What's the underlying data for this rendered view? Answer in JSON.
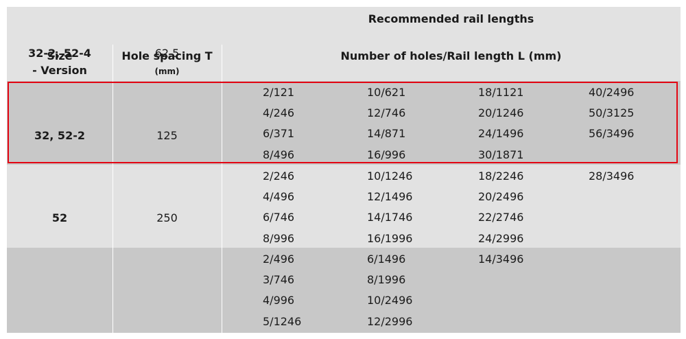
{
  "header": {
    "recommended": "Recommended rail lengths",
    "size_line1": "Size",
    "size_line2": "- Version",
    "hole_spacing": "Hole spacing T",
    "hole_unit": "(mm)",
    "holes_length": "Number of holes/Rail length L (mm)"
  },
  "rows": [
    {
      "size": "32-2, 52-4",
      "spacing": "62.5",
      "columns": [
        [
          "2/121",
          "4/246",
          "6/371",
          "8/496"
        ],
        [
          "10/621",
          "12/746",
          "14/871",
          "16/996"
        ],
        [
          "18/1121",
          "20/1246",
          "24/1496",
          "30/1871"
        ],
        [
          "40/2496",
          "50/3125",
          "56/3496"
        ]
      ]
    },
    {
      "size": "32, 52-2",
      "spacing": "125",
      "columns": [
        [
          "2/246",
          "4/496",
          "6/746",
          "8/996"
        ],
        [
          "10/1246",
          "12/1496",
          "14/1746",
          "16/1996"
        ],
        [
          "18/2246",
          "20/2496",
          "22/2746",
          "24/2996"
        ],
        [
          "28/3496"
        ]
      ]
    },
    {
      "size": "52",
      "spacing": "250",
      "columns": [
        [
          "2/496",
          "3/746",
          "4/996",
          "5/1246"
        ],
        [
          "6/1496",
          "8/1996",
          "10/2496",
          "12/2996"
        ],
        [
          "14/3496"
        ],
        []
      ]
    }
  ],
  "colors": {
    "header_bg": "#e2e2e2",
    "band_dark": "#c8c8c8",
    "band_light": "#e2e2e2",
    "highlight": "#e30613"
  }
}
